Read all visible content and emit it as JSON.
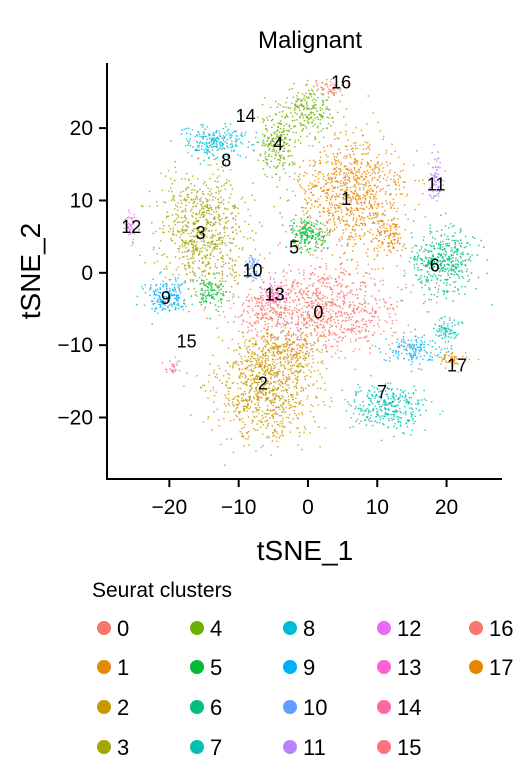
{
  "chart_data": {
    "type": "scatter",
    "title": "Malignant",
    "xlabel": "tSNE_1",
    "ylabel": "tSNE_2",
    "xlim": [
      -29,
      28
    ],
    "ylim": [
      -28.5,
      29
    ],
    "xticks": [
      -20,
      -10,
      0,
      10,
      20
    ],
    "yticks": [
      -20,
      -10,
      0,
      10,
      20
    ],
    "xtick_labels": [
      "−20",
      "−10",
      "0",
      "10",
      "20"
    ],
    "ytick_labels": [
      "−20",
      "−10",
      "0",
      "10",
      "20"
    ],
    "grid": false,
    "legend": {
      "title": "Seurat clusters",
      "placement": "bottom",
      "entries": [
        "0",
        "1",
        "2",
        "3",
        "4",
        "5",
        "6",
        "7",
        "8",
        "9",
        "10",
        "11",
        "12",
        "13",
        "14",
        "15",
        "16",
        "17"
      ]
    },
    "series": [
      {
        "name": "0",
        "color": "#F8766D",
        "label_xy": [
          1.5,
          -5.5
        ]
      },
      {
        "name": "1",
        "color": "#E58700",
        "label_xy": [
          5.5,
          10.2
        ]
      },
      {
        "name": "2",
        "color": "#C99800",
        "label_xy": [
          -6.5,
          -15.3
        ]
      },
      {
        "name": "3",
        "color": "#A3A500",
        "label_xy": [
          -15.5,
          5.5
        ]
      },
      {
        "name": "4",
        "color": "#6BB100",
        "label_xy": [
          -4.3,
          17.8
        ]
      },
      {
        "name": "5",
        "color": "#00BA38",
        "label_xy": [
          -2.0,
          3.5
        ]
      },
      {
        "name": "6",
        "color": "#00BF7D",
        "label_xy": [
          18.3,
          1.0
        ]
      },
      {
        "name": "7",
        "color": "#00C0AF",
        "label_xy": [
          10.7,
          -16.5
        ]
      },
      {
        "name": "8",
        "color": "#00BCD8",
        "label_xy": [
          -11.8,
          15.5
        ]
      },
      {
        "name": "9",
        "color": "#00B0F6",
        "label_xy": [
          -20.5,
          -3.5
        ]
      },
      {
        "name": "10",
        "color": "#619CFF",
        "label_xy": [
          -8.0,
          0.3
        ]
      },
      {
        "name": "11",
        "color": "#B983FF",
        "label_xy": [
          18.5,
          12.2
        ]
      },
      {
        "name": "12",
        "color": "#E76BF3",
        "label_xy": [
          -25.5,
          6.3
        ]
      },
      {
        "name": "13",
        "color": "#FD61D1",
        "label_xy": [
          -4.8,
          -3.0
        ]
      },
      {
        "name": "14",
        "color": "#FF67A4",
        "label_xy": [
          -9.0,
          21.7
        ]
      },
      {
        "name": "15",
        "color": "#FC717F",
        "label_xy": [
          -17.5,
          -9.5
        ]
      },
      {
        "name": "16",
        "color": "#F8766D",
        "label_xy": [
          4.8,
          26.3
        ]
      },
      {
        "name": "17",
        "color": "#E58700",
        "label_xy": [
          21.5,
          -12.8
        ]
      }
    ],
    "regions": [
      {
        "cluster": 0,
        "cx": 2.0,
        "cy": -5.0,
        "rx": 13.0,
        "ry": 7.0,
        "n": 950
      },
      {
        "cluster": 0,
        "cx": -6.0,
        "cy": -5.0,
        "rx": 4.0,
        "ry": 3.0,
        "n": 120
      },
      {
        "cluster": 1,
        "cx": 6.0,
        "cy": 11.0,
        "rx": 9.0,
        "ry": 9.0,
        "n": 900
      },
      {
        "cluster": 1,
        "cx": 11.5,
        "cy": 5.0,
        "rx": 3.0,
        "ry": 3.0,
        "n": 120
      },
      {
        "cluster": 2,
        "cx": -6.0,
        "cy": -16.0,
        "rx": 8.0,
        "ry": 8.0,
        "n": 850
      },
      {
        "cluster": 2,
        "cx": -4.0,
        "cy": -11.0,
        "rx": 6.0,
        "ry": 3.5,
        "n": 250
      },
      {
        "cluster": 3,
        "cx": -15.0,
        "cy": 6.0,
        "rx": 7.0,
        "ry": 8.5,
        "n": 750
      },
      {
        "cluster": 4,
        "cx": -4.5,
        "cy": 18.0,
        "rx": 3.0,
        "ry": 5.0,
        "n": 220
      },
      {
        "cluster": 4,
        "cx": 0.0,
        "cy": 22.5,
        "rx": 4.0,
        "ry": 3.5,
        "n": 200
      },
      {
        "cluster": 5,
        "cx": 0.0,
        "cy": 5.5,
        "rx": 3.0,
        "ry": 2.5,
        "n": 180
      },
      {
        "cluster": 5,
        "cx": -14.0,
        "cy": -3.0,
        "rx": 2.5,
        "ry": 2.5,
        "n": 100
      },
      {
        "cluster": 6,
        "cx": 19.5,
        "cy": 1.5,
        "rx": 5.0,
        "ry": 5.0,
        "n": 420
      },
      {
        "cluster": 7,
        "cx": 11.5,
        "cy": -18.5,
        "rx": 6.0,
        "ry": 3.5,
        "n": 320
      },
      {
        "cluster": 7,
        "cx": 20.0,
        "cy": -8.0,
        "rx": 2.0,
        "ry": 2.5,
        "n": 80
      },
      {
        "cluster": 8,
        "cx": -13.5,
        "cy": 18.0,
        "rx": 5.5,
        "ry": 2.5,
        "n": 230
      },
      {
        "cluster": 9,
        "cx": -20.5,
        "cy": -3.5,
        "rx": 3.5,
        "ry": 2.5,
        "n": 180
      },
      {
        "cluster": 9,
        "cx": 15.0,
        "cy": -10.5,
        "rx": 4.0,
        "ry": 2.5,
        "n": 140
      },
      {
        "cluster": 10,
        "cx": -8.0,
        "cy": 0.5,
        "rx": 1.5,
        "ry": 2.0,
        "n": 60
      },
      {
        "cluster": 11,
        "cx": 18.5,
        "cy": 13.0,
        "rx": 1.2,
        "ry": 3.5,
        "n": 70
      },
      {
        "cluster": 12,
        "cx": -25.5,
        "cy": 6.3,
        "rx": 0.9,
        "ry": 2.2,
        "n": 50
      },
      {
        "cluster": 13,
        "cx": -4.5,
        "cy": -3.0,
        "rx": 2.0,
        "ry": 1.5,
        "n": 60
      },
      {
        "cluster": 15,
        "cx": -19.5,
        "cy": -13.0,
        "rx": 1.3,
        "ry": 1.3,
        "n": 30
      },
      {
        "cluster": 16,
        "cx": 3.0,
        "cy": 25.5,
        "rx": 3.0,
        "ry": 1.2,
        "n": 50
      },
      {
        "cluster": 17,
        "cx": 20.5,
        "cy": -12.0,
        "rx": 2.5,
        "ry": 1.5,
        "n": 50
      }
    ]
  }
}
